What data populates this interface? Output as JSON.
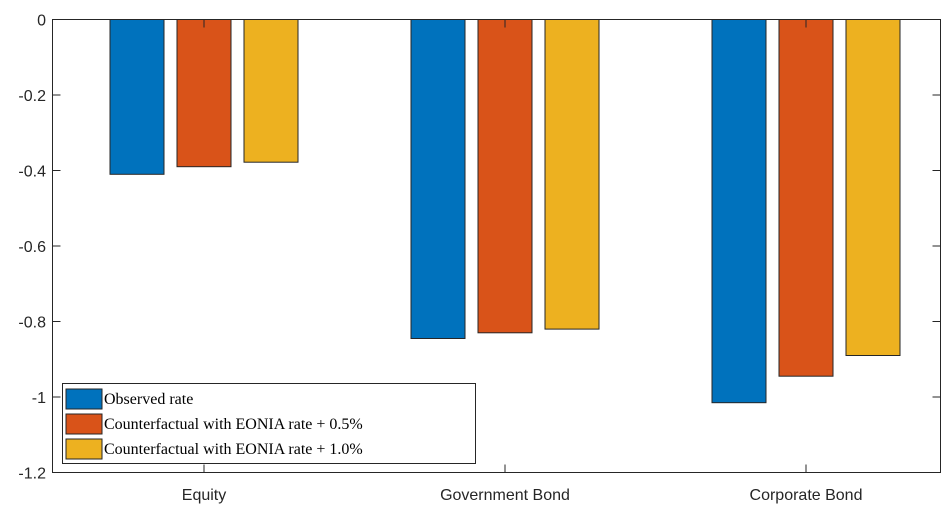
{
  "chart_data": {
    "type": "bar",
    "title": "",
    "xlabel": "",
    "ylabel": "",
    "categories": [
      "Equity",
      "Government Bond",
      "Corporate Bond"
    ],
    "series": [
      {
        "name": "Observed rate",
        "values": [
          -0.41,
          -0.845,
          -1.015
        ],
        "color": "#0072BD"
      },
      {
        "name": "Counterfactual with EONIA rate + 0.5%",
        "values": [
          -0.39,
          -0.83,
          -0.945
        ],
        "color": "#D95319"
      },
      {
        "name": "Counterfactual with EONIA rate + 1.0%",
        "values": [
          -0.378,
          -0.82,
          -0.89
        ],
        "color": "#EDB120"
      }
    ],
    "ylim": [
      -1.2,
      0
    ],
    "yticks": [
      0,
      -0.2,
      -0.4,
      -0.6,
      -0.8,
      -1,
      -1.2
    ],
    "ytick_labels": [
      "0",
      "-0.2",
      "-0.4",
      "-0.6",
      "-0.8",
      "-1",
      "-1.2"
    ],
    "grid": false,
    "legend_position": "bottom-left"
  }
}
